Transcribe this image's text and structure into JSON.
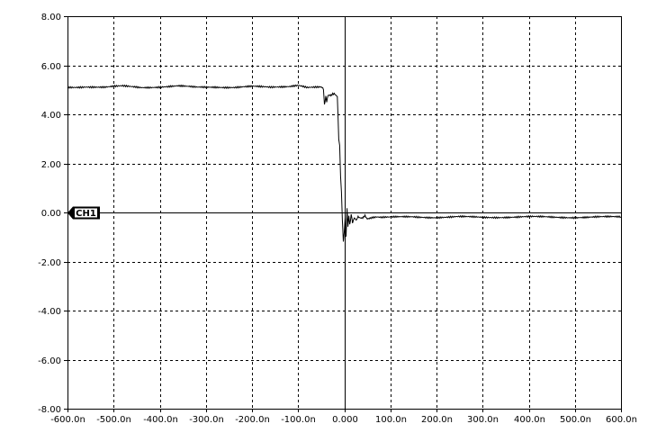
{
  "chart_data": {
    "type": "line",
    "xlim": [
      -600,
      600
    ],
    "ylim": [
      -8,
      8
    ],
    "x_ticks": [
      -600,
      -500,
      -400,
      -300,
      -200,
      -100,
      0,
      100,
      200,
      300,
      400,
      500,
      600
    ],
    "x_tick_labels": [
      "-600.0n",
      "-500.0n",
      "-400.0n",
      "-300.0n",
      "-200.0n",
      "-100.0n",
      "0.000",
      "100.0n",
      "200.0n",
      "300.0n",
      "400.0n",
      "500.0n",
      "600.0n"
    ],
    "y_ticks": [
      8,
      6,
      4,
      2,
      0,
      -2,
      -4,
      -6,
      -8
    ],
    "y_tick_labels": [
      "8.00",
      "6.00",
      "4.00",
      "2.00",
      "0.00",
      "-2.00",
      "-4.00",
      "-6.00",
      "-8.00"
    ],
    "grid": true,
    "marker": {
      "label": "CH1",
      "y": 0
    },
    "series": [
      {
        "x": [
          -600,
          -560,
          -520,
          -480,
          -440,
          -400,
          -360,
          -320,
          -280,
          -240,
          -200,
          -160,
          -120,
          -100,
          -80,
          -60,
          -50,
          -45,
          -43,
          -40,
          -38,
          -35,
          -30,
          -25,
          -20,
          -15,
          -12,
          -10,
          -8,
          -6,
          -4,
          -2,
          0,
          2,
          4,
          6,
          8,
          10,
          12,
          15,
          18,
          22,
          26,
          30,
          35,
          40,
          45,
          50,
          60,
          70,
          80,
          100,
          150,
          200,
          250,
          300,
          400,
          500,
          600
        ],
        "y": [
          5.1,
          5.13,
          5.1,
          5.15,
          5.1,
          5.12,
          5.15,
          5.1,
          5.12,
          5.1,
          5.13,
          5.1,
          5.15,
          5.2,
          5.1,
          5.1,
          5.1,
          5.05,
          4.4,
          4.7,
          4.5,
          4.8,
          4.75,
          4.85,
          4.8,
          4.75,
          3.0,
          2.7,
          1.5,
          0.8,
          -0.3,
          -1.2,
          -0.8,
          -0.2,
          -1.0,
          0.2,
          -0.6,
          -0.1,
          -0.5,
          -0.1,
          -0.4,
          -0.2,
          -0.3,
          -0.15,
          -0.25,
          -0.2,
          -0.15,
          -0.25,
          -0.2,
          -0.18,
          -0.2,
          -0.2,
          -0.18,
          -0.2,
          -0.18,
          -0.2,
          -0.18,
          -0.2,
          -0.18
        ]
      }
    ]
  }
}
